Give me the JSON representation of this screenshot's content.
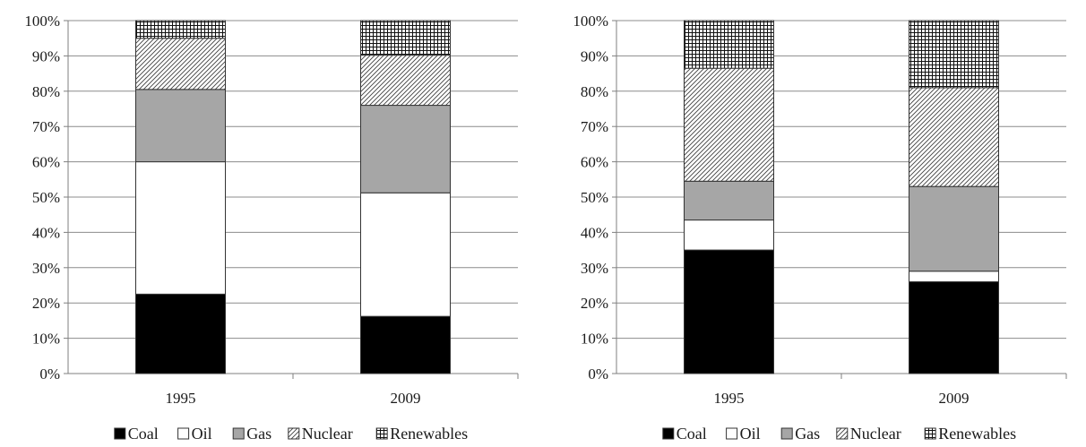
{
  "chart_data": [
    {
      "type": "bar",
      "stacked": "percent",
      "categories": [
        "1995",
        "2009"
      ],
      "ylim": [
        0,
        100
      ],
      "yticks": [
        "0%",
        "10%",
        "20%",
        "30%",
        "40%",
        "50%",
        "60%",
        "70%",
        "80%",
        "90%",
        "100%"
      ],
      "grid": true,
      "legend_position": "bottom",
      "series": [
        {
          "name": "Coal",
          "values": [
            22.5,
            16.2
          ],
          "pattern": "solid-black"
        },
        {
          "name": "Oil",
          "values": [
            37.5,
            35.0
          ],
          "pattern": "white"
        },
        {
          "name": "Gas",
          "values": [
            20.5,
            24.8
          ],
          "pattern": "solid-gray"
        },
        {
          "name": "Nuclear",
          "values": [
            14.5,
            14.2
          ],
          "pattern": "diagonal-hatch"
        },
        {
          "name": "Renewables",
          "values": [
            5.0,
            9.8
          ],
          "pattern": "crosshatch"
        }
      ]
    },
    {
      "type": "bar",
      "stacked": "percent",
      "categories": [
        "1995",
        "2009"
      ],
      "ylim": [
        0,
        100
      ],
      "yticks": [
        "0%",
        "10%",
        "20%",
        "30%",
        "40%",
        "50%",
        "60%",
        "70%",
        "80%",
        "90%",
        "100%"
      ],
      "grid": true,
      "legend_position": "bottom",
      "series": [
        {
          "name": "Coal",
          "values": [
            35.0,
            26.0
          ],
          "pattern": "solid-black"
        },
        {
          "name": "Oil",
          "values": [
            8.5,
            3.0
          ],
          "pattern": "white"
        },
        {
          "name": "Gas",
          "values": [
            11.0,
            24.0
          ],
          "pattern": "solid-gray"
        },
        {
          "name": "Nuclear",
          "values": [
            32.0,
            28.0
          ],
          "pattern": "diagonal-hatch"
        },
        {
          "name": "Renewables",
          "values": [
            13.5,
            19.0
          ],
          "pattern": "crosshatch"
        }
      ]
    }
  ],
  "colors": {
    "coal": "#000000",
    "oil": "#ffffff",
    "gas": "#a6a6a6",
    "hatch": "#404040",
    "grid": "#8c8c8c",
    "axis": "#7f7f7f",
    "text": "#1a1a1a"
  }
}
